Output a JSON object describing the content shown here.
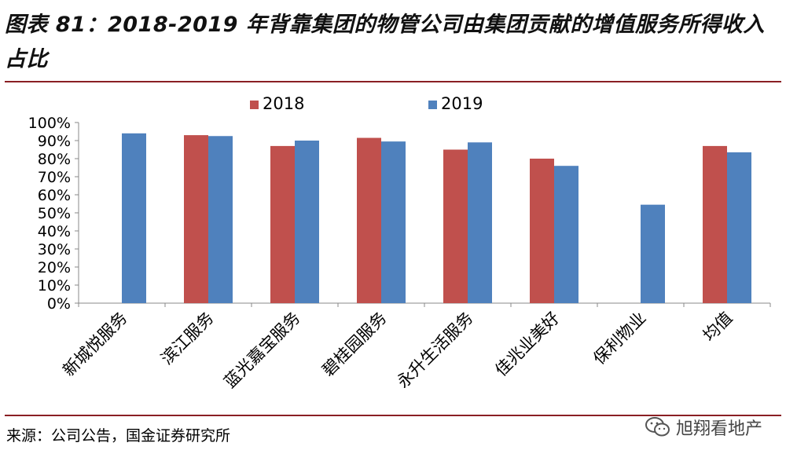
{
  "header": {
    "title": "图表 81：2018-2019 年背靠集团的物管公司由集团贡献的增值服务所得收入占比"
  },
  "footer": {
    "source": "来源：公司公告，国金证券研究所",
    "watermark": "旭翔看地产",
    "watermark_icon": "wechat-icon"
  },
  "colors": {
    "series_2018": "#c0504d",
    "series_2019": "#4f81bd",
    "rule": "#8a1f23"
  },
  "chart_data": {
    "type": "bar",
    "title": "",
    "xlabel": "",
    "ylabel": "",
    "ylim": [
      0,
      100
    ],
    "yticks": [
      "0%",
      "10%",
      "20%",
      "30%",
      "40%",
      "50%",
      "60%",
      "70%",
      "80%",
      "90%",
      "100%"
    ],
    "legend_position": "top-center",
    "grid": false,
    "categories": [
      "新城悦服务",
      "滨江服务",
      "蓝光嘉宝服务",
      "碧桂园服务",
      "永升生活服务",
      "佳兆业美好",
      "保利物业",
      "均值"
    ],
    "series": [
      {
        "name": "2018",
        "values": [
          null,
          93,
          87,
          91.5,
          85,
          80,
          null,
          87
        ]
      },
      {
        "name": "2019",
        "values": [
          94,
          92.5,
          90,
          89.5,
          89,
          76,
          54.5,
          83.5
        ]
      }
    ]
  }
}
